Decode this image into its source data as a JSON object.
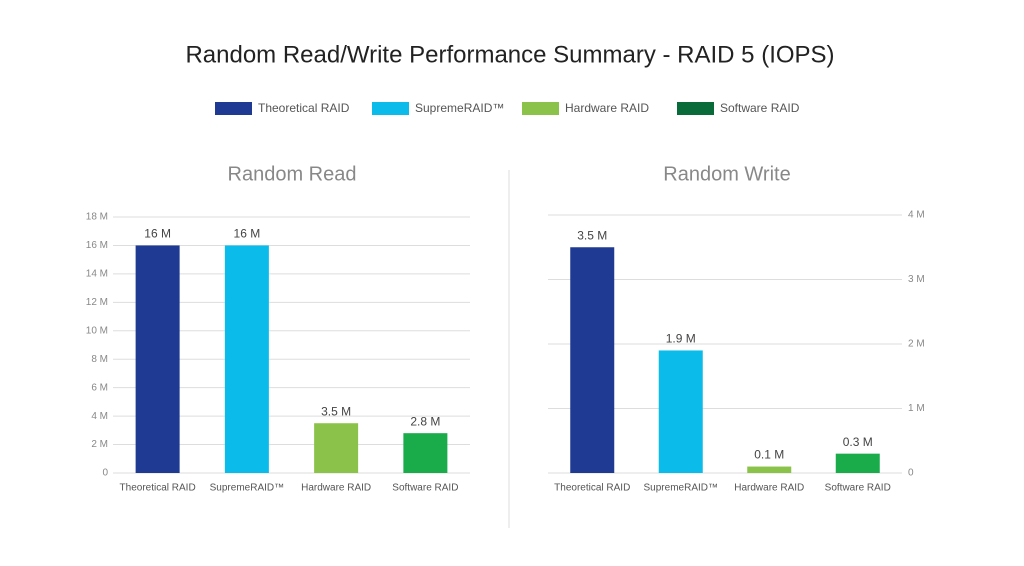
{
  "title": "Random Read/Write Performance Summary - RAID 5 (IOPS)",
  "legend": [
    {
      "name": "Theoretical RAID",
      "color": "#1f3a93"
    },
    {
      "name": "SupremeRAID™",
      "color": "#0bbbe9"
    },
    {
      "name": "Hardware RAID",
      "color": "#8bc34a"
    },
    {
      "name": "Software RAID",
      "color": "#0a6b3a"
    }
  ],
  "chart_data": [
    {
      "type": "bar",
      "title": "Random Read",
      "categories": [
        "Theoretical RAID",
        "SupremeRAID™",
        "Hardware RAID",
        "Software RAID"
      ],
      "values": [
        16,
        16,
        3.5,
        2.8
      ],
      "value_labels": [
        "16 M",
        "16 M",
        "3.5 M",
        "2.8 M"
      ],
      "colors": [
        "#1f3a93",
        "#0bbbe9",
        "#8bc34a",
        "#1aab4b"
      ],
      "ylim": [
        0,
        18
      ],
      "yticks": [
        0,
        {
          "value": 2,
          "label": "2 M"
        },
        {
          "value": 4,
          "label": "4 M"
        },
        {
          "value": 6,
          "label": "6 M"
        },
        {
          "value": 8,
          "label": "8 M"
        },
        {
          "value": 10,
          "label": "10 M"
        },
        {
          "value": 12,
          "label": "12 M"
        },
        {
          "value": 14,
          "label": "14 M"
        },
        {
          "value": 16,
          "label": "16 M"
        },
        {
          "value": 18,
          "label": "18 M"
        }
      ],
      "y_axis_side": "left",
      "grid": true
    },
    {
      "type": "bar",
      "title": "Random Write",
      "categories": [
        "Theoretical RAID",
        "SupremeRAID™",
        "Hardware RAID",
        "Software RAID"
      ],
      "values": [
        3.5,
        1.9,
        0.1,
        0.3
      ],
      "value_labels": [
        "3.5 M",
        "1.9 M",
        "0.1 M",
        "0.3 M"
      ],
      "colors": [
        "#1f3a93",
        "#0bbbe9",
        "#8bc34a",
        "#1aab4b"
      ],
      "ylim": [
        0,
        4
      ],
      "yticks": [
        0,
        {
          "value": 1,
          "label": "1 M"
        },
        {
          "value": 2,
          "label": "2 M"
        },
        {
          "value": 3,
          "label": "3 M"
        },
        {
          "value": 4,
          "label": "4 M"
        }
      ],
      "y_axis_side": "right",
      "grid": true
    }
  ]
}
